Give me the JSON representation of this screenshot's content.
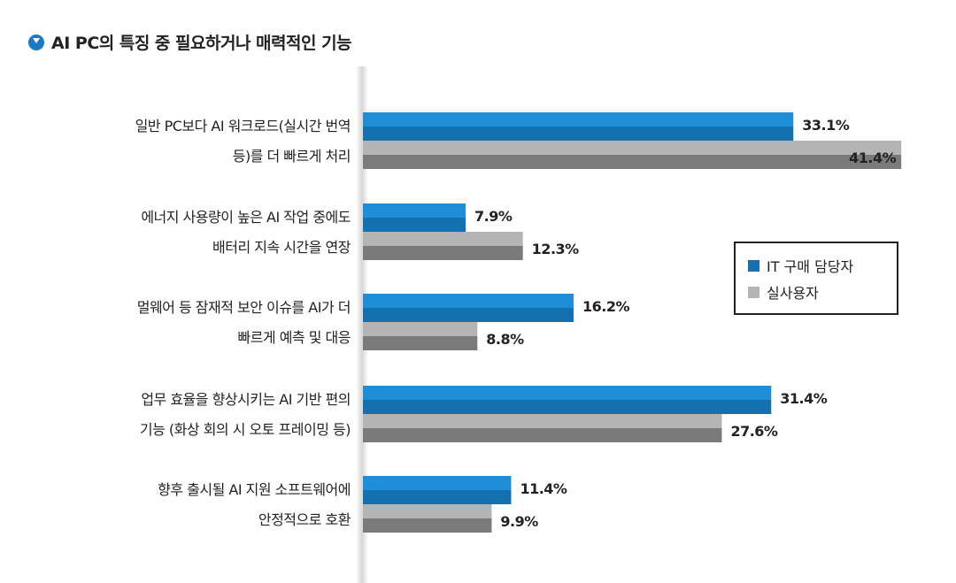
{
  "title": "AI PC의 특징 중 필요하거나 매력적인 기능",
  "colors": {
    "it": "#1570b0",
    "it_light": "#1e8fd6",
    "user": "#7a7a7a",
    "user_light": "#b4b4b4"
  },
  "chart_data": {
    "type": "bar",
    "orientation": "horizontal",
    "title": "AI PC의 특징 중 필요하거나 매력적인 기능",
    "categories": [
      [
        "일반 PC보다 AI 워크로드(실시간 번역",
        "등)를 더 빠르게 처리"
      ],
      [
        "에너지 사용량이 높은 AI 작업 중에도",
        "배터리 지속 시간을 연장"
      ],
      [
        "멀웨어 등 잠재적 보안 이슈를 AI가 더",
        "빠르게 예측 및 대응"
      ],
      [
        "업무 효율을 향상시키는 AI 기반 편의",
        "기능 (화상 회의 시 오토 프레이밍 등)"
      ],
      [
        "향후 출시될 AI 지원 소프트웨어에",
        "안정적으로 호환"
      ]
    ],
    "series": [
      {
        "name": "IT 구매 담당자",
        "values": [
          33.1,
          7.9,
          16.2,
          31.4,
          11.4
        ],
        "labels": [
          "33.1%",
          "7.9%",
          "16.2%",
          "31.4%",
          "11.4%"
        ]
      },
      {
        "name": "실사용자",
        "values": [
          41.4,
          12.3,
          8.8,
          27.6,
          9.9
        ],
        "labels": [
          "41.4%",
          "12.3%",
          "8.8%",
          "27.6%",
          "9.9%"
        ]
      }
    ],
    "legend": "right",
    "grid": false
  }
}
